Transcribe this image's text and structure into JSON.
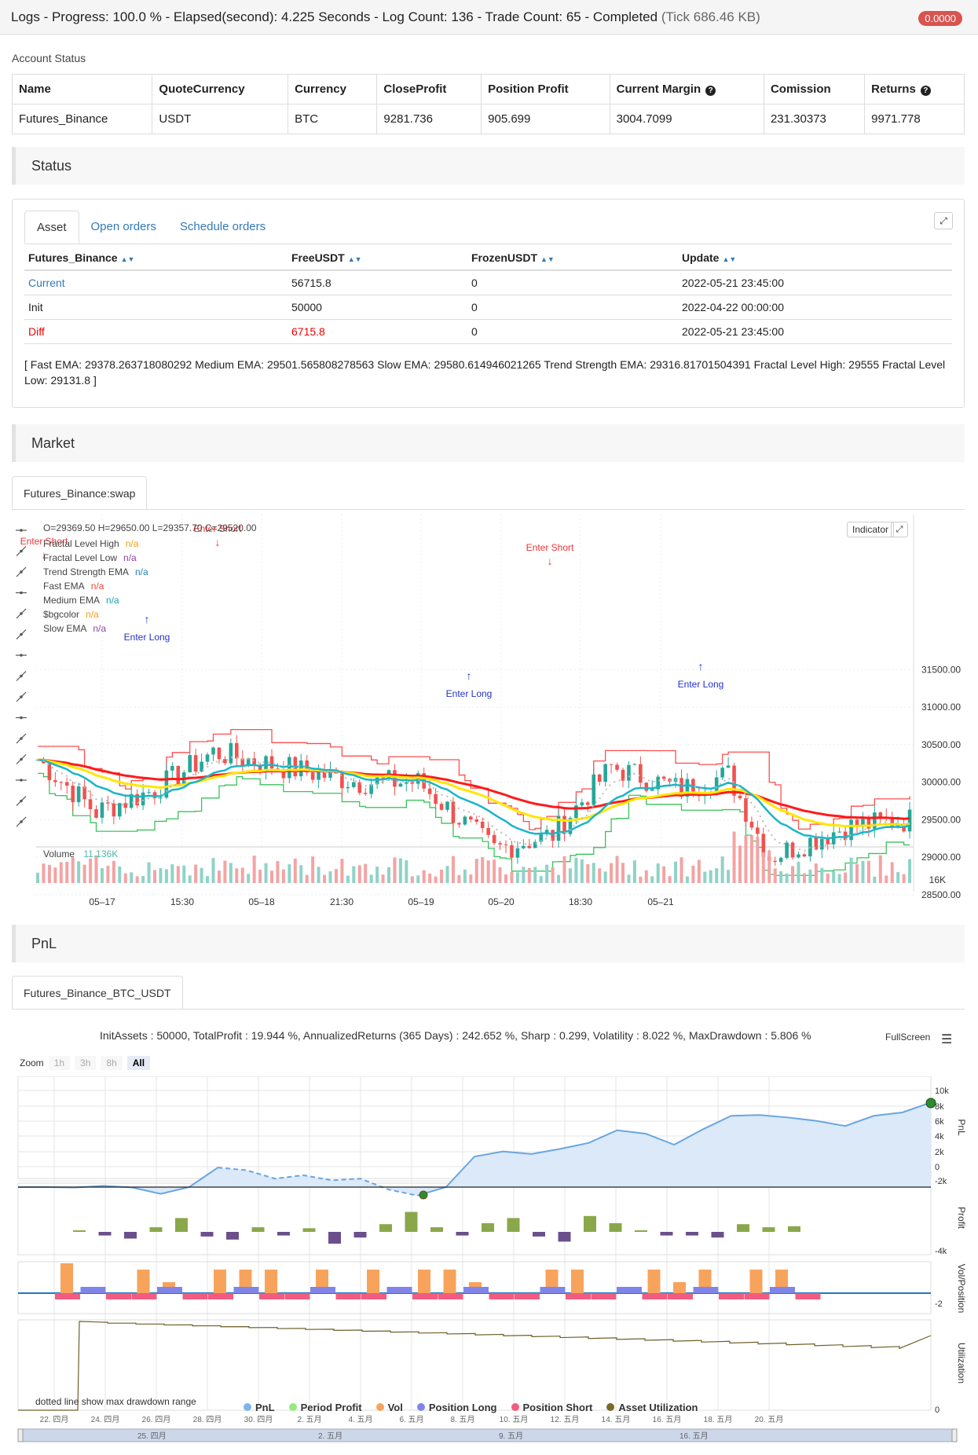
{
  "topbar": {
    "title": "Logs - Progress: 100.0 % - Elapsed(second): 4.225 Seconds - Log Count: 136 - Trade Count: 65 - Completed",
    "tick": "(Tick 686.46 KB)",
    "badge": "0.0000"
  },
  "account": {
    "label": "Account Status",
    "headers": [
      "Name",
      "QuoteCurrency",
      "Currency",
      "CloseProfit",
      "Position Profit",
      "Current Margin",
      "Comission",
      "Returns"
    ],
    "row": [
      "Futures_Binance",
      "USDT",
      "BTC",
      "9281.736",
      "905.699",
      "3004.7099",
      "231.30373",
      "9971.778"
    ]
  },
  "status": {
    "title": "Status",
    "tabs": [
      "Asset",
      "Open orders",
      "Schedule orders"
    ],
    "headers": [
      "Futures_Binance",
      "FreeUSDT",
      "FrozenUSDT",
      "Update"
    ],
    "rows": [
      [
        "Current",
        "56715.8",
        "0",
        "2022-05-21 23:45:00"
      ],
      [
        "Init",
        "50000",
        "0",
        "2022-04-22 00:00:00"
      ],
      [
        "Diff",
        "6715.8",
        "0",
        "2022-05-21 23:45:00"
      ]
    ],
    "info": "[ Fast EMA: 29378.263718080292 Medium EMA: 29501.565808278563 Slow EMA: 29580.614946021265 Trend Strength EMA: 29316.81701504391 Fractal Level High: 29555 Fractal Level Low: 29131.8 ]"
  },
  "market": {
    "title": "Market",
    "tab": "Futures_Binance:swap",
    "ohlc": "O=29369.50    H=29650.00    L=29357.70    C=29520.00",
    "legend": [
      {
        "name": "Fractal Level High",
        "val": "n/a",
        "color": "#f39c12"
      },
      {
        "name": "Fractal Level Low",
        "val": "n/a",
        "color": "#8e44ad"
      },
      {
        "name": "Trend Strength EMA",
        "val": "n/a",
        "color": "#2980b9"
      },
      {
        "name": "Fast EMA",
        "val": "n/a",
        "color": "#e74c3c"
      },
      {
        "name": "Medium EMA",
        "val": "n/a",
        "color": "#16a5b5"
      },
      {
        "name": "$bgcolor",
        "val": "n/a",
        "color": "#f39c12"
      },
      {
        "name": "Slow EMA",
        "val": "n/a",
        "color": "#8e44ad"
      }
    ],
    "indicator_btn": "Indicator",
    "price_ticks": [
      "31500.00",
      "31000.00",
      "30500.00",
      "30000.00",
      "29500.00",
      "29000.00",
      "28500.00"
    ],
    "time_ticks": [
      "05–17",
      "15:30",
      "05–18",
      "21:30",
      "05–19",
      "05–20",
      "18:30",
      "05–21"
    ],
    "volume_label": "Volume",
    "volume_val": "11.136K",
    "volume_tick": "16K",
    "signals": [
      {
        "t": "Enter Short",
        "c": "#e33"
      },
      {
        "t": "Enter Short",
        "c": "#e33"
      },
      {
        "t": "Enter Short",
        "c": "#e33"
      },
      {
        "t": "Enter Long",
        "c": "#23c"
      },
      {
        "t": "Enter Long",
        "c": "#23c"
      },
      {
        "t": "Enter Long",
        "c": "#23c"
      }
    ]
  },
  "pnl": {
    "title": "PnL",
    "tab": "Futures_Binance_BTC_USDT",
    "stats": "InitAssets : 50000, TotalProfit : 19.944 %, AnnualizedReturns (365 Days) : 242.652 %, Sharp : 0.299, Volatility : 8.022 %, MaxDrawdown : 5.806 %",
    "fullscreen": "FullScreen",
    "zoom_label": "Zoom",
    "zoom": [
      "1h",
      "3h",
      "8h",
      "All"
    ],
    "pnl_ticks": [
      "10k",
      "8k",
      "6k",
      "4k",
      "2k",
      "0",
      "-2k"
    ],
    "profit_tick": "-4k",
    "volpos_tick": "-2",
    "util_tick": "0",
    "axis_titles": [
      "PnL",
      "Profit",
      "Vol/Position",
      "Utilization"
    ],
    "date_ticks": [
      "22. 四月",
      "24. 四月",
      "26. 四月",
      "28. 四月",
      "30. 四月",
      "2. 五月",
      "4. 五月",
      "6. 五月",
      "8. 五月",
      "10. 五月",
      "12. 五月",
      "14. 五月",
      "16. 五月",
      "18. 五月",
      "20. 五月"
    ],
    "nav_ticks": [
      "25. 四月",
      "2. 五月",
      "9. 五月",
      "16. 五月"
    ],
    "note": "dotted line show max drawdown range",
    "legend": [
      {
        "name": "PnL",
        "color": "#7cb5ec"
      },
      {
        "name": "Period Profit",
        "color": "#90ed7d"
      },
      {
        "name": "Vol",
        "color": "#f7a35c"
      },
      {
        "name": "Position Long",
        "color": "#8085e9"
      },
      {
        "name": "Position Short",
        "color": "#f15c80"
      },
      {
        "name": "Asset Utilization",
        "color": "#7a6a2a"
      }
    ]
  },
  "chart_data": [
    {
      "type": "line",
      "title": "PnL",
      "series": [
        {
          "name": "PnL",
          "values": [
            0,
            0,
            -50,
            150,
            -50,
            -800,
            0,
            2300,
            2000,
            1000,
            1400,
            800,
            1000,
            -300,
            -1000,
            0,
            3600,
            4200,
            3900,
            4500,
            5200,
            6700,
            6300,
            5000,
            6800,
            8400,
            8500,
            8200,
            7800,
            7200,
            8400,
            8800,
            9972
          ]
        }
      ]
    }
  ]
}
